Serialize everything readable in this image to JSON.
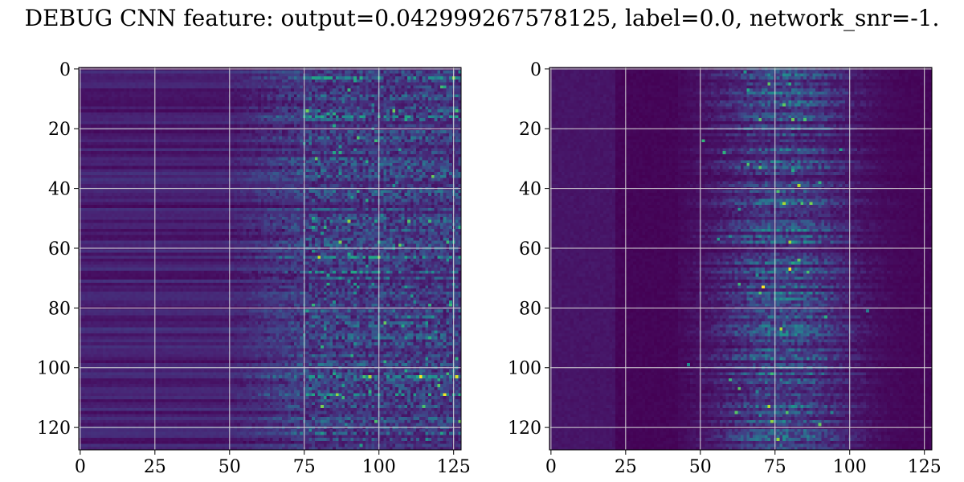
{
  "figure": {
    "title": "DEBUG CNN feature: output=0.042999267578125, label=0.0, network_snr=-1."
  },
  "colors": {
    "grid": "#d9d9d9",
    "colormap": "viridis"
  },
  "chart_data": [
    {
      "type": "heatmap",
      "title": "",
      "xlabel": "",
      "ylabel": "",
      "rows": 128,
      "cols": 128,
      "xlim": [
        0,
        127
      ],
      "ylim": [
        127,
        0
      ],
      "xticks": [
        "0",
        "25",
        "50",
        "75",
        "100",
        "125"
      ],
      "yticks": [
        "0",
        "20",
        "40",
        "60",
        "80",
        "100",
        "120"
      ],
      "grid": true,
      "colormap": "viridis",
      "value_range": [
        0,
        1
      ],
      "description_values": {
        "columns_0_to_75_mean": 0.28,
        "columns_75_to_127_mean": 0.35,
        "bright_rows": [
          3,
          16,
          63,
          68,
          103,
          109
        ]
      }
    },
    {
      "type": "heatmap",
      "title": "",
      "xlabel": "",
      "ylabel": "",
      "rows": 128,
      "cols": 128,
      "xlim": [
        0,
        127
      ],
      "ylim": [
        127,
        0
      ],
      "xticks": [
        "0",
        "25",
        "50",
        "75",
        "100",
        "125"
      ],
      "yticks": [
        "0",
        "20",
        "40",
        "60",
        "80",
        "100",
        "120"
      ],
      "grid": true,
      "colormap": "viridis",
      "value_range": [
        0,
        1
      ],
      "description_values": {
        "activity_center_column": 78,
        "activity_width_columns": 45,
        "background_mean": 0.05
      }
    }
  ]
}
